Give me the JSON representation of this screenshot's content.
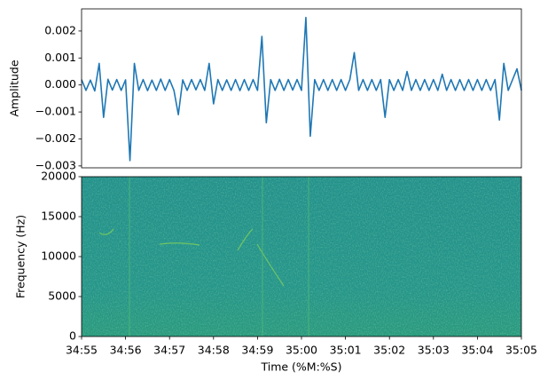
{
  "chart_data": [
    {
      "type": "line",
      "ylabel": "Amplitude",
      "color": "#1f77b4",
      "xlim": [
        2095,
        2105
      ],
      "ylim": [
        -0.00307,
        0.00282
      ],
      "yticks": [
        {
          "value": -0.003,
          "label": "−0.003"
        },
        {
          "value": -0.002,
          "label": "−0.002"
        },
        {
          "value": -0.001,
          "label": "−0.001"
        },
        {
          "value": 0,
          "label": "0.000"
        },
        0.001,
        0.002
      ],
      "x": [
        2095,
        2095.1,
        2095.2,
        2095.3,
        2095.4,
        2095.5,
        2095.6,
        2095.7,
        2095.8,
        2095.9,
        2096,
        2096.1,
        2096.2,
        2096.3,
        2096.4,
        2096.5,
        2096.6,
        2096.7,
        2096.8,
        2096.9,
        2097,
        2097.1,
        2097.2,
        2097.3,
        2097.4,
        2097.5,
        2097.6,
        2097.7,
        2097.8,
        2097.9,
        2098,
        2098.1,
        2098.2,
        2098.3,
        2098.4,
        2098.5,
        2098.6,
        2098.7,
        2098.8,
        2098.9,
        2099,
        2099.1,
        2099.2,
        2099.3,
        2099.4,
        2099.5,
        2099.6,
        2099.7,
        2099.8,
        2099.9,
        2100,
        2100.1,
        2100.2,
        2100.3,
        2100.4,
        2100.5,
        2100.6,
        2100.7,
        2100.8,
        2100.9,
        2101,
        2101.1,
        2101.2,
        2101.3,
        2101.4,
        2101.5,
        2101.6,
        2101.7,
        2101.8,
        2101.9,
        2102,
        2102.1,
        2102.2,
        2102.3,
        2102.4,
        2102.5,
        2102.6,
        2102.7,
        2102.8,
        2102.9,
        2103,
        2103.1,
        2103.2,
        2103.3,
        2103.4,
        2103.5,
        2103.6,
        2103.7,
        2103.8,
        2103.9,
        2104,
        2104.1,
        2104.2,
        2104.3,
        2104.4,
        2104.5,
        2104.6,
        2104.7,
        2104.8,
        2104.9,
        2105
      ],
      "values": [
        0.0002,
        -0.0002,
        0.00018,
        -0.00022,
        0.0008,
        -0.0012,
        0.00021,
        -0.00019,
        0.0002,
        -0.0002,
        0.00019,
        -0.0028,
        0.0008,
        -0.0002,
        0.0002,
        -0.00021,
        0.00018,
        -0.0002,
        0.00022,
        -0.0002,
        0.0002,
        -0.0002,
        -0.0011,
        0.00019,
        -0.0002,
        0.0002,
        -0.00018,
        0.0002,
        -0.0002,
        0.0008,
        -0.0007,
        0.0002,
        -0.0002,
        0.00019,
        -0.0002,
        0.0002,
        -0.00021,
        0.0002,
        -0.0002,
        0.0002,
        -0.0002,
        0.0018,
        -0.0014,
        0.0002,
        -0.0002,
        0.00021,
        -0.0002,
        0.0002,
        -0.00019,
        0.0002,
        -0.0002,
        0.0025,
        -0.0019,
        0.0002,
        -0.0002,
        0.0002,
        -0.0002,
        0.0002,
        -0.0002,
        0.0002,
        -0.0002,
        0.0002,
        0.0012,
        -0.0002,
        0.0002,
        -0.0002,
        0.0002,
        -0.0002,
        0.0002,
        -0.0012,
        0.0002,
        -0.0002,
        0.0002,
        -0.0002,
        0.0005,
        -0.0002,
        0.0002,
        -0.0002,
        0.0002,
        -0.0002,
        0.0002,
        -0.0002,
        0.0004,
        -0.0002,
        0.0002,
        -0.0002,
        0.0002,
        -0.0002,
        0.0002,
        -0.0002,
        0.0002,
        -0.0002,
        0.0002,
        -0.0002,
        0.0002,
        -0.0013,
        0.0008,
        -0.0002,
        0.0002,
        0.0006,
        -0.0002
      ]
    },
    {
      "type": "spectrogram",
      "ylabel": "Frequency (Hz)",
      "xlabel": "Time (%M:%S)",
      "xlim": [
        2095,
        2105
      ],
      "xticks": [
        {
          "value": 2095,
          "label": "34:55"
        },
        {
          "value": 2096,
          "label": "34:56"
        },
        {
          "value": 2097,
          "label": "34:57"
        },
        {
          "value": 2098,
          "label": "34:58"
        },
        {
          "value": 2099,
          "label": "34:59"
        },
        {
          "value": 2100,
          "label": "35:00"
        },
        {
          "value": 2101,
          "label": "35:01"
        },
        {
          "value": 2102,
          "label": "35:02"
        },
        {
          "value": 2103,
          "label": "35:03"
        },
        {
          "value": 2104,
          "label": "35:04"
        },
        {
          "value": 2105,
          "label": "35:05"
        }
      ],
      "ylim": [
        0,
        20000
      ],
      "yticks": [
        0,
        5000,
        10000,
        15000,
        20000
      ]
    }
  ]
}
